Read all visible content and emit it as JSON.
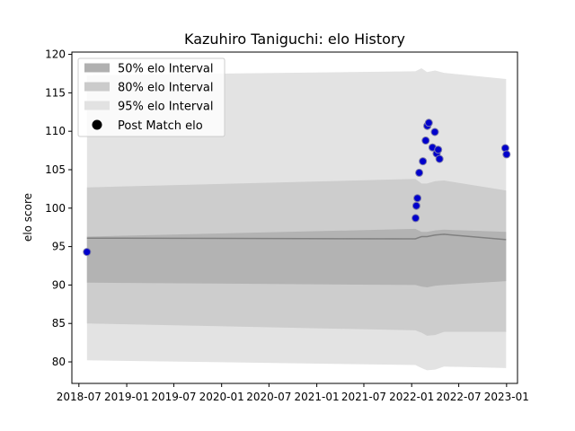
{
  "chart_data": {
    "type": "line",
    "title": "Kazuhiro Taniguchi: elo History",
    "xlabel": "",
    "ylabel": "elo score",
    "xlim": [
      "2018-06-04",
      "2023-02-12"
    ],
    "ylim": [
      77.2,
      120.3
    ],
    "x_ticks": [
      "2018-07",
      "2019-01",
      "2019-07",
      "2020-01",
      "2020-07",
      "2021-01",
      "2021-07",
      "2022-01",
      "2022-07",
      "2023-01"
    ],
    "y_ticks": [
      80,
      85,
      90,
      95,
      100,
      105,
      110,
      115,
      120
    ],
    "legend": {
      "placement": "top-left",
      "entries": [
        {
          "label": "50% elo Interval",
          "color": "#b0b0b0",
          "kind": "band"
        },
        {
          "label": "80% elo Interval",
          "color": "#cbcbcb",
          "kind": "band"
        },
        {
          "label": "95% elo Interval",
          "color": "#e2e2e2",
          "kind": "band"
        },
        {
          "label": "Post Match elo",
          "color": "#000000",
          "kind": "marker"
        }
      ]
    },
    "grid": false,
    "colors": {
      "band50": "#b3b3b3",
      "band80": "#cdcdcd",
      "band95": "#e3e3e3",
      "mean_line": "#808080",
      "points_fill": "#0000cc",
      "points_edge": "#7a7aa8"
    },
    "band_series": {
      "x": [
        "2018-08-01",
        "2022-01-15",
        "2022-02-08",
        "2022-03-01",
        "2022-04-01",
        "2022-05-05",
        "2022-12-30"
      ],
      "mean": [
        96.1,
        96.0,
        96.3,
        96.3,
        96.5,
        96.6,
        95.9
      ],
      "band50_low": [
        90.3,
        90.0,
        89.8,
        89.7,
        89.9,
        90.0,
        90.5
      ],
      "band50_high": [
        96.3,
        97.3,
        96.9,
        96.9,
        97.1,
        97.2,
        96.9
      ],
      "band80_low": [
        85.0,
        84.1,
        83.8,
        83.4,
        83.5,
        83.9,
        83.9
      ],
      "band80_high": [
        102.7,
        103.8,
        103.2,
        103.2,
        103.5,
        103.6,
        102.3
      ],
      "band95_low": [
        80.2,
        79.6,
        79.2,
        78.9,
        79.0,
        79.4,
        79.2
      ],
      "band95_high": [
        117.3,
        117.8,
        118.2,
        117.7,
        117.9,
        117.6,
        116.8
      ]
    },
    "series": [
      {
        "name": "Post Match elo",
        "points": [
          {
            "x": "2018-08-01",
            "y": 94.3
          },
          {
            "x": "2022-01-16",
            "y": 98.7
          },
          {
            "x": "2022-01-19",
            "y": 100.3
          },
          {
            "x": "2022-01-23",
            "y": 101.3
          },
          {
            "x": "2022-01-30",
            "y": 104.6
          },
          {
            "x": "2022-02-13",
            "y": 106.1
          },
          {
            "x": "2022-02-24",
            "y": 108.8
          },
          {
            "x": "2022-03-02",
            "y": 110.7
          },
          {
            "x": "2022-03-08",
            "y": 111.1
          },
          {
            "x": "2022-03-22",
            "y": 107.9
          },
          {
            "x": "2022-03-31",
            "y": 109.9
          },
          {
            "x": "2022-04-07",
            "y": 107.1
          },
          {
            "x": "2022-04-13",
            "y": 107.6
          },
          {
            "x": "2022-04-18",
            "y": 106.4
          },
          {
            "x": "2022-12-27",
            "y": 107.8
          },
          {
            "x": "2023-01-01",
            "y": 107.0
          }
        ]
      }
    ]
  }
}
